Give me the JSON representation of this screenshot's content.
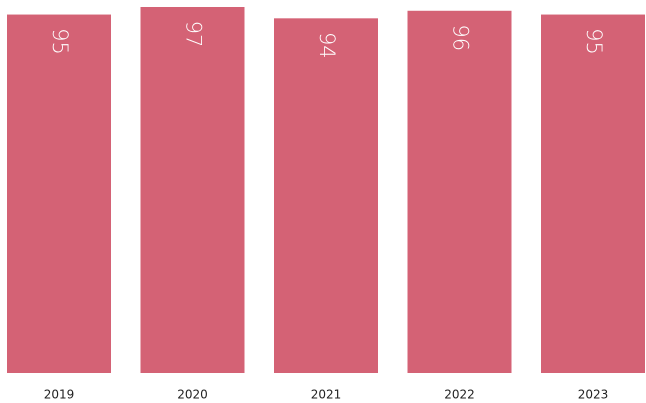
{
  "chart_data": {
    "type": "bar",
    "categories": [
      "2019",
      "2020",
      "2021",
      "2022",
      "2023"
    ],
    "values": [
      95,
      97,
      94,
      96,
      95
    ],
    "color": "#d46275"
  }
}
